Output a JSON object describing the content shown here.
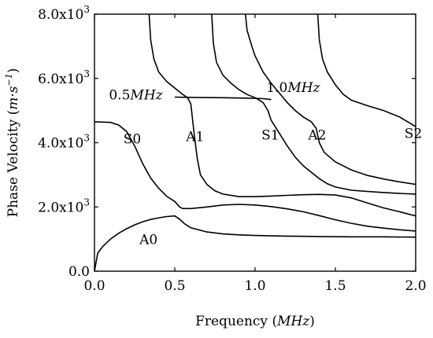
{
  "chart_data": {
    "type": "line",
    "xlabel": "Frequency",
    "xlabel_unit": "MHz",
    "ylabel": "Phase Velocity",
    "ylabel_unit_main": "m·s",
    "ylabel_unit_exp": "−1",
    "xlim": [
      0.0,
      2.0
    ],
    "ylim": [
      0,
      8000
    ],
    "x_ticks": [
      {
        "value": 0.0,
        "label": "0.0"
      },
      {
        "value": 0.5,
        "label": "0.5"
      },
      {
        "value": 1.0,
        "label": "1.0"
      },
      {
        "value": 1.5,
        "label": "1.5"
      },
      {
        "value": 2.0,
        "label": "2.0"
      }
    ],
    "y_ticks": [
      {
        "value": 0,
        "mantissa": "0.0",
        "exp": ""
      },
      {
        "value": 2000,
        "mantissa": "2.0x10",
        "exp": "3"
      },
      {
        "value": 4000,
        "mantissa": "4.0x10",
        "exp": "3"
      },
      {
        "value": 6000,
        "mantissa": "6.0x10",
        "exp": "3"
      },
      {
        "value": 8000,
        "mantissa": "8.0x10",
        "exp": "3"
      }
    ],
    "series": [
      {
        "name": "A0",
        "points": [
          [
            0.0,
            0
          ],
          [
            0.02,
            560
          ],
          [
            0.05,
            760
          ],
          [
            0.1,
            1000
          ],
          [
            0.15,
            1180
          ],
          [
            0.2,
            1320
          ],
          [
            0.25,
            1440
          ],
          [
            0.3,
            1540
          ],
          [
            0.35,
            1610
          ],
          [
            0.4,
            1660
          ],
          [
            0.45,
            1700
          ],
          [
            0.5,
            1720
          ],
          [
            0.53,
            1620
          ],
          [
            0.56,
            1480
          ],
          [
            0.6,
            1350
          ],
          [
            0.7,
            1220
          ],
          [
            0.8,
            1160
          ],
          [
            0.9,
            1130
          ],
          [
            1.0,
            1110
          ],
          [
            1.2,
            1090
          ],
          [
            1.4,
            1080
          ],
          [
            1.6,
            1070
          ],
          [
            1.8,
            1070
          ],
          [
            2.0,
            1060
          ]
        ]
      },
      {
        "name": "S0",
        "points": [
          [
            0.0,
            4650
          ],
          [
            0.1,
            4630
          ],
          [
            0.15,
            4550
          ],
          [
            0.2,
            4350
          ],
          [
            0.25,
            3900
          ],
          [
            0.3,
            3350
          ],
          [
            0.35,
            2900
          ],
          [
            0.4,
            2580
          ],
          [
            0.45,
            2330
          ],
          [
            0.5,
            2170
          ],
          [
            0.53,
            2000
          ],
          [
            0.55,
            1950
          ],
          [
            0.6,
            1950
          ],
          [
            0.7,
            2000
          ],
          [
            0.8,
            2060
          ],
          [
            0.9,
            2080
          ],
          [
            1.0,
            2060
          ],
          [
            1.1,
            2010
          ],
          [
            1.2,
            1940
          ],
          [
            1.3,
            1850
          ],
          [
            1.4,
            1730
          ],
          [
            1.5,
            1600
          ],
          [
            1.6,
            1490
          ],
          [
            1.7,
            1400
          ],
          [
            1.8,
            1340
          ],
          [
            1.9,
            1290
          ],
          [
            2.0,
            1250
          ]
        ]
      },
      {
        "name": "A1",
        "points": [
          [
            0.34,
            8000
          ],
          [
            0.35,
            7200
          ],
          [
            0.37,
            6600
          ],
          [
            0.4,
            6200
          ],
          [
            0.45,
            5900
          ],
          [
            0.5,
            5700
          ],
          [
            0.55,
            5500
          ],
          [
            0.58,
            5400
          ],
          [
            0.6,
            5200
          ],
          [
            0.62,
            4300
          ],
          [
            0.64,
            3500
          ],
          [
            0.66,
            3000
          ],
          [
            0.7,
            2700
          ],
          [
            0.75,
            2500
          ],
          [
            0.8,
            2400
          ],
          [
            0.9,
            2320
          ],
          [
            1.0,
            2320
          ],
          [
            1.1,
            2340
          ],
          [
            1.2,
            2360
          ],
          [
            1.3,
            2380
          ],
          [
            1.4,
            2390
          ],
          [
            1.5,
            2370
          ],
          [
            1.6,
            2280
          ],
          [
            1.7,
            2120
          ],
          [
            1.8,
            1970
          ],
          [
            1.9,
            1850
          ],
          [
            2.0,
            1720
          ]
        ]
      },
      {
        "name": "S1",
        "points": [
          [
            0.73,
            8000
          ],
          [
            0.74,
            7100
          ],
          [
            0.76,
            6500
          ],
          [
            0.8,
            6100
          ],
          [
            0.85,
            5850
          ],
          [
            0.9,
            5650
          ],
          [
            0.95,
            5500
          ],
          [
            1.0,
            5400
          ],
          [
            1.05,
            5250
          ],
          [
            1.08,
            5000
          ],
          [
            1.1,
            4700
          ],
          [
            1.15,
            4300
          ],
          [
            1.2,
            3900
          ],
          [
            1.25,
            3550
          ],
          [
            1.3,
            3280
          ],
          [
            1.35,
            3080
          ],
          [
            1.4,
            2880
          ],
          [
            1.45,
            2720
          ],
          [
            1.5,
            2620
          ],
          [
            1.6,
            2520
          ],
          [
            1.7,
            2480
          ],
          [
            1.8,
            2450
          ],
          [
            1.9,
            2420
          ],
          [
            2.0,
            2400
          ]
        ]
      },
      {
        "name": "A2",
        "points": [
          [
            0.94,
            8000
          ],
          [
            0.95,
            7500
          ],
          [
            0.98,
            7000
          ],
          [
            1.0,
            6700
          ],
          [
            1.05,
            6200
          ],
          [
            1.1,
            5850
          ],
          [
            1.15,
            5550
          ],
          [
            1.2,
            5250
          ],
          [
            1.25,
            5000
          ],
          [
            1.3,
            4800
          ],
          [
            1.35,
            4650
          ],
          [
            1.38,
            4450
          ],
          [
            1.4,
            4000
          ],
          [
            1.43,
            3700
          ],
          [
            1.5,
            3400
          ],
          [
            1.6,
            3150
          ],
          [
            1.7,
            2980
          ],
          [
            1.8,
            2870
          ],
          [
            1.9,
            2780
          ],
          [
            2.0,
            2700
          ]
        ]
      },
      {
        "name": "S2",
        "points": [
          [
            1.39,
            8000
          ],
          [
            1.4,
            7200
          ],
          [
            1.42,
            6600
          ],
          [
            1.45,
            6200
          ],
          [
            1.5,
            5800
          ],
          [
            1.55,
            5500
          ],
          [
            1.6,
            5320
          ],
          [
            1.7,
            5150
          ],
          [
            1.8,
            5000
          ],
          [
            1.9,
            4800
          ],
          [
            2.0,
            4500
          ]
        ]
      },
      {
        "name": "cutoff-0.5MHz",
        "points": [
          [
            0.5,
            5420
          ],
          [
            0.6,
            5410
          ],
          [
            0.8,
            5400
          ],
          [
            1.0,
            5380
          ],
          [
            1.05,
            5370
          ],
          [
            1.1,
            5340
          ]
        ]
      }
    ],
    "annotations": [
      {
        "text": "S0",
        "x": 0.18,
        "y": 3980
      },
      {
        "text": "A1",
        "x": 0.57,
        "y": 4050
      },
      {
        "text": "S1",
        "x": 1.04,
        "y": 4100
      },
      {
        "text": "A2",
        "x": 1.33,
        "y": 4100
      },
      {
        "text": "S2",
        "x": 1.93,
        "y": 4150
      },
      {
        "text": "A0",
        "x": 0.28,
        "y": 850
      },
      {
        "text": "0.5",
        "italic_suffix": "MHz",
        "x": 0.09,
        "y": 5350
      },
      {
        "text": "1.0",
        "italic_suffix": "MHz",
        "x": 1.07,
        "y": 5580
      }
    ]
  }
}
